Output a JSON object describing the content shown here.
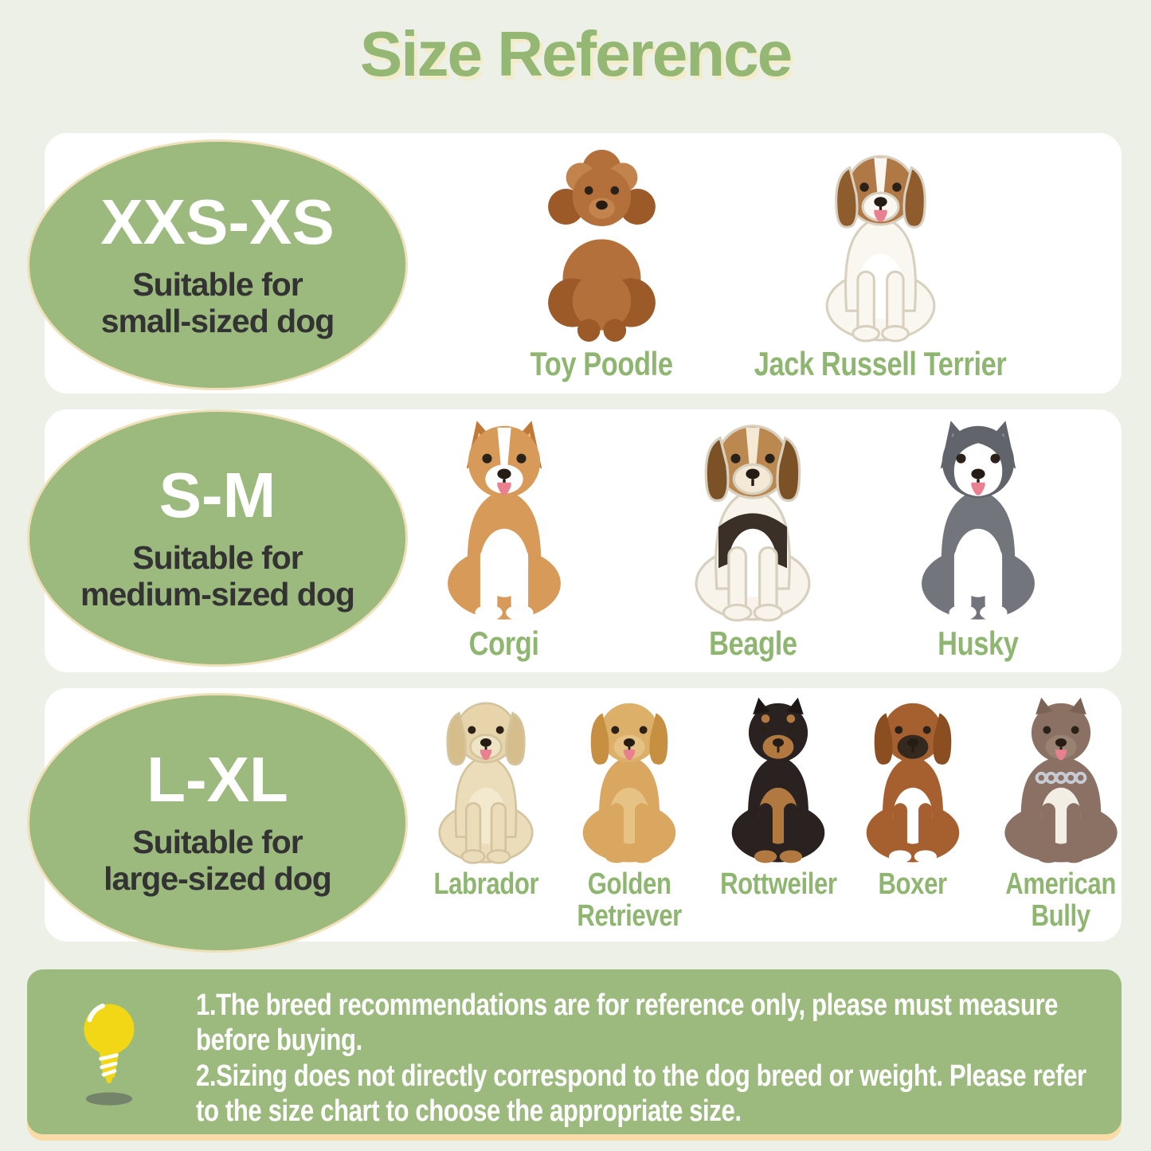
{
  "title": "Size Reference",
  "palette": {
    "page_bg": "#edf0e7",
    "card_bg": "#ffffff",
    "green_fill": "#9cba7d",
    "green_text": "#8fb671",
    "title_green": "#94b873",
    "cream_border": "#efe0ba",
    "title_shadow": "#f2ecca",
    "dark_text": "#333333",
    "note_text": "#ffffff",
    "bulb_yellow": "#f2d716",
    "panel_shadow": "#f9dca8"
  },
  "sizes": [
    {
      "label": "XXS-XS",
      "desc": "Suitable for\nsmall-sized dog"
    },
    {
      "label": "S-M",
      "desc": "Suitable for\nmedium-sized dog"
    },
    {
      "label": "L-XL",
      "desc": "Suitable for\nlarge-sized dog"
    }
  ],
  "rows": [
    {
      "breeds": [
        {
          "id": "toy-poodle",
          "label": "Toy Poodle"
        },
        {
          "id": "jack-russell-terrier",
          "label": "Jack Russell Terrier"
        }
      ]
    },
    {
      "breeds": [
        {
          "id": "corgi",
          "label": "Corgi"
        },
        {
          "id": "beagle",
          "label": "Beagle"
        },
        {
          "id": "husky",
          "label": "Husky"
        }
      ]
    },
    {
      "breeds": [
        {
          "id": "labrador",
          "label": "Labrador"
        },
        {
          "id": "golden-retriever",
          "label": "Golden\nRetriever"
        },
        {
          "id": "rottweiler",
          "label": "Rottweiler"
        },
        {
          "id": "boxer",
          "label": "Boxer"
        },
        {
          "id": "american-bully",
          "label": "American\nBully"
        }
      ]
    }
  ],
  "dog_styles": {
    "toy-poodle": {
      "style": "poodle",
      "body": "#b4703a",
      "dark": "#9c5a28",
      "light": "#c3834c"
    },
    "jack-russell-terrier": {
      "style": "sit",
      "earType": "floppy",
      "body": "#faf7f1",
      "head": "#b07844",
      "ear": "#8f5d2d",
      "muzzle": "#faf7f1",
      "blaze": "#faf7f1",
      "chest": "#ffffff",
      "outline": "#d8d0bf",
      "tongue": true
    },
    "corgi": {
      "style": "sit",
      "earType": "upright",
      "body": "#d79a59",
      "head": "#d79a59",
      "ear": "#c07a35",
      "earInner": "#edbd8a",
      "muzzle": "#ffffff",
      "blaze": "#ffffff",
      "chest": "#ffffff",
      "legs": "#ffffff",
      "tongue": true
    },
    "beagle": {
      "style": "sit",
      "earType": "floppy",
      "body": "#f8f4ec",
      "head": "#bb8850",
      "ear": "#7c5126",
      "muzzle": "#f3e9d5",
      "blaze": "#f3e9d5",
      "saddle": "#3a3028",
      "chest": "#ffffff",
      "outline": "#d8d0bf"
    },
    "husky": {
      "style": "sit",
      "earType": "upright",
      "body": "#73757c",
      "head": "#62646b",
      "ear": "#62646b",
      "earInner": "#8d8f96",
      "muzzle": "#ffffff",
      "maskBig": true,
      "chest": "#ffffff",
      "legs": "#ffffff",
      "tongue": true
    },
    "labrador": {
      "style": "sit",
      "earType": "floppy",
      "body": "#ecddba",
      "head": "#e7d4ab",
      "ear": "#d6bd8c",
      "muzzle": "#efe3c6",
      "chest": "#f3e9cf",
      "outline": "#d3c49e",
      "tongue": true
    },
    "golden-retriever": {
      "style": "sit",
      "earType": "floppy",
      "body": "#d9a75f",
      "head": "#ddb069",
      "ear": "#c68f42",
      "muzzle": "#e5c186",
      "chest": "#e6c284",
      "tongue": true
    },
    "rottweiler": {
      "style": "sit",
      "earType": "small",
      "body": "#2a2220",
      "head": "#2a2220",
      "ear": "#1d1715",
      "muzzle": "#b1793f",
      "chest": "#b1793f",
      "brow": "#b1793f",
      "paws": "#b1793f"
    },
    "boxer": {
      "style": "sit",
      "earType": "floppy",
      "body": "#a66030",
      "head": "#a66030",
      "ear": "#8a4e21",
      "muzzle": "#35291f",
      "chest": "#ffffff",
      "paws": "#ffffff"
    },
    "american-bully": {
      "style": "sit",
      "earType": "small",
      "body": "#8b7164",
      "head": "#8b7164",
      "ear": "#7b6255",
      "muzzle": "#9a8273",
      "chest": "#f2eee6",
      "chain": true,
      "wide": true,
      "tongue": true
    }
  },
  "notes": [
    "1.The breed recommendations are for reference only, please must measure before buying.",
    "2.Sizing does not directly correspond to the dog breed or weight. Please refer to the size chart to choose the appropriate size."
  ]
}
